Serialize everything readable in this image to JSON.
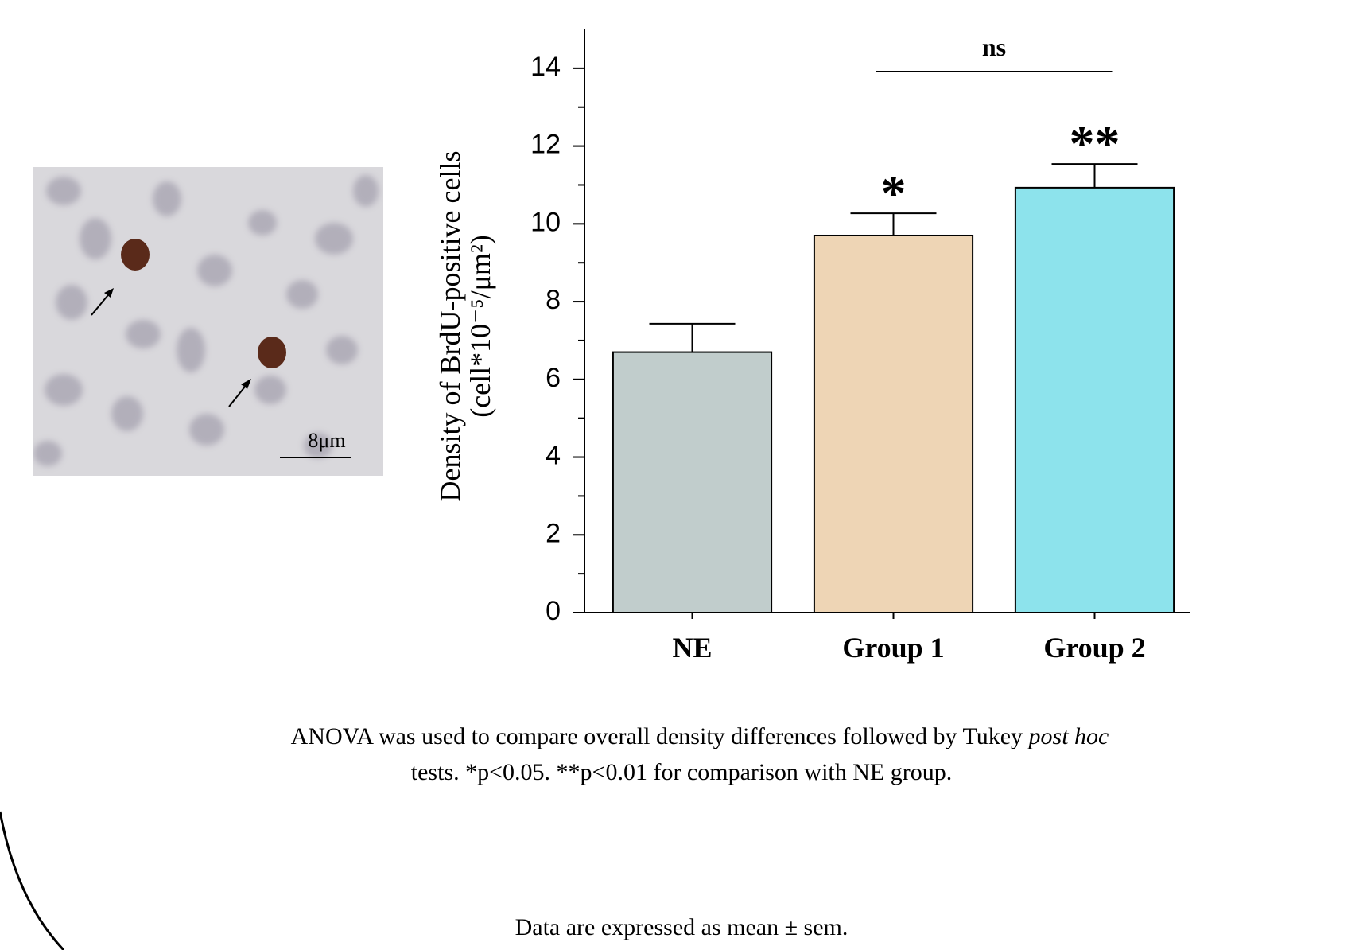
{
  "chart_data": {
    "type": "bar",
    "ylabel": [
      "Density of BrdU-positive cells",
      "(cell*10⁻⁵/μm²)"
    ],
    "categories": [
      "NE",
      "Group 1",
      "Group 2"
    ],
    "values": [
      6.7,
      9.7,
      10.93
    ],
    "errors": [
      0.73,
      0.57,
      0.61
    ],
    "colors": [
      "#c1cdcc",
      "#eed5b5",
      "#8de3ec"
    ],
    "significance_labels": [
      null,
      "*",
      "**"
    ],
    "comparison_label": "ns",
    "ylim": [
      0,
      15
    ],
    "yticks": [
      0,
      2,
      4,
      6,
      8,
      10,
      12,
      14
    ],
    "yminorticks": [
      1,
      3,
      5,
      7,
      9,
      11,
      13
    ],
    "inset_scale_label": "8μm",
    "caption": [
      "ANOVA was used to compare overall density differences followed by Tukey ",
      "post hoc",
      " tests.  *p<0.05. **p<0.01 for comparison with NE group.",
      "Data are expressed as mean ± sem."
    ]
  }
}
